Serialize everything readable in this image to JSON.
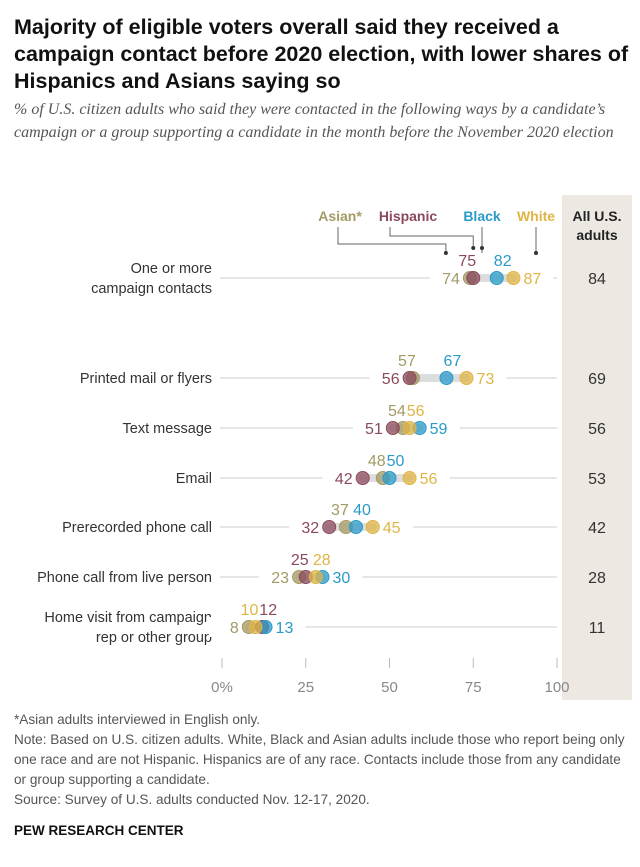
{
  "title": "Majority of eligible voters overall said they received a campaign contact before 2020 election, with lower shares of Hispanics and Asians saying so",
  "subtitle": "% of U.S. citizen adults who said they were contacted in the following ways by a candidate’s campaign or a group supporting a candidate in the month before the November 2020 election",
  "chart_data": {
    "type": "scatter",
    "series": [
      {
        "name": "Asian*",
        "color": "#a39a66",
        "values": [
          74,
          57,
          54,
          48,
          37,
          23,
          8
        ]
      },
      {
        "name": "Hispanic",
        "color": "#8a4a5c",
        "values": [
          75,
          56,
          51,
          42,
          32,
          25,
          12
        ]
      },
      {
        "name": "Black",
        "color": "#2a9ac8",
        "values": [
          82,
          67,
          59,
          50,
          40,
          30,
          13
        ]
      },
      {
        "name": "White",
        "color": "#e0b445",
        "values": [
          87,
          73,
          56,
          56,
          45,
          28,
          10
        ]
      }
    ],
    "categories": [
      [
        "One or more",
        "campaign contacts"
      ],
      [
        "Printed mail or flyers"
      ],
      [
        "Text message"
      ],
      [
        "Email"
      ],
      [
        "Prerecorded phone call"
      ],
      [
        "Phone call from live person"
      ],
      [
        "Home visit from campaign",
        "rep or other group"
      ]
    ],
    "all_adults_header": [
      "All U.S.",
      "adults"
    ],
    "all_adults": [
      84,
      69,
      56,
      53,
      42,
      28,
      11
    ],
    "xticks": [
      "0%",
      "25",
      "50",
      "75",
      "100"
    ],
    "xlim": [
      0,
      100
    ]
  },
  "notes": [
    "*Asian adults interviewed in English only.",
    "Note: Based on U.S. citizen adults. White, Black and Asian adults include those who report being only one race and are not Hispanic. Hispanics are of any race. Contacts include those from any candidate or group supporting a candidate.",
    "Source: Survey of U.S. adults conducted Nov. 12-17, 2020."
  ],
  "brand": "PEW RESEARCH CENTER"
}
